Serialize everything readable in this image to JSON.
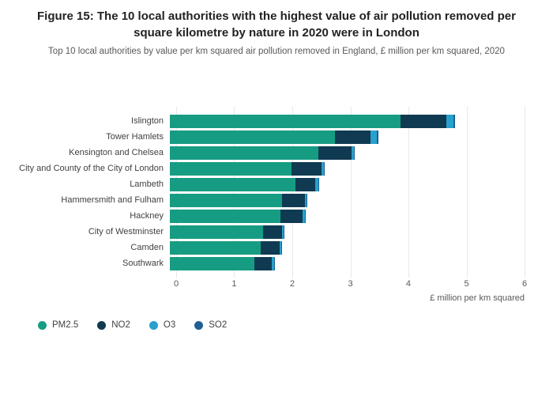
{
  "chart_data": {
    "type": "bar",
    "orientation": "horizontal",
    "stacked": true,
    "title": "Figure 15: The 10 local authorities with the highest value of air pollution removed per square kilometre by nature in 2020 were in London",
    "subtitle": "Top 10 local authorities by value per km squared air pollution removed in England, £ million per km squared, 2020",
    "xlabel": "£ million per km squared",
    "ylabel": "",
    "xlim": [
      0,
      6
    ],
    "xticks": [
      0,
      1,
      2,
      3,
      4,
      5,
      6
    ],
    "grid": true,
    "legend_position": "bottom-left",
    "categories": [
      "Islington",
      "Tower Hamlets",
      "Kensington and Chelsea",
      "City and County of the City of London",
      "Lambeth",
      "Hammersmith and Fulham",
      "Hackney",
      "City of Westminster",
      "Camden",
      "Southwark"
    ],
    "series": [
      {
        "name": "PM2.5",
        "color": "#169c82",
        "values": [
          3.97,
          2.84,
          2.56,
          2.1,
          2.16,
          1.93,
          1.9,
          1.6,
          1.56,
          1.45
        ]
      },
      {
        "name": "NO2",
        "color": "#0f3a52",
        "values": [
          0.79,
          0.62,
          0.57,
          0.51,
          0.35,
          0.39,
          0.38,
          0.33,
          0.33,
          0.31
        ]
      },
      {
        "name": "O3",
        "color": "#27a0cc",
        "values": [
          0.13,
          0.11,
          0.04,
          0.04,
          0.05,
          0.03,
          0.04,
          0.03,
          0.03,
          0.03
        ]
      },
      {
        "name": "SO2",
        "color": "#206095",
        "values": [
          0.02,
          0.02,
          0.01,
          0.01,
          0.01,
          0.01,
          0.01,
          0.01,
          0.01,
          0.01
        ]
      }
    ]
  }
}
